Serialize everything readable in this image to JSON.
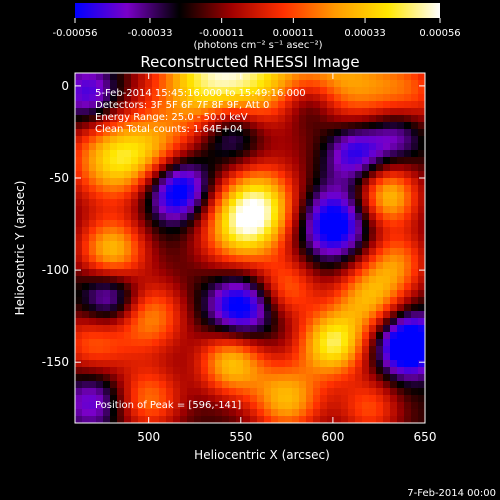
{
  "chart_data": {
    "type": "heatmap",
    "title": "Reconstructed RHESSI Image",
    "xlabel": "Heliocentric X (arcsec)",
    "ylabel": "Heliocentric Y (arcsec)",
    "xlim": [
      460,
      650
    ],
    "ylim": [
      -183,
      7
    ],
    "x_ticks": [
      500,
      550,
      600,
      650
    ],
    "y_ticks": [
      0,
      -50,
      -100,
      -150
    ],
    "grid": false,
    "colorbar": {
      "placement": "top",
      "range": [
        -0.00056,
        0.00056
      ],
      "tick_values": [
        -0.00056,
        -0.00033,
        -0.00011,
        0.00011,
        0.00033,
        0.00056
      ],
      "tick_labels": [
        "-0.00056",
        "-0.00033",
        "-0.00011",
        "0.00011",
        "0.00033",
        "0.00056"
      ],
      "unit_label": "(photons cm⁻² s⁻¹ asec⁻²)"
    },
    "colorscale": [
      "#0000ff",
      "#7a00c8",
      "#000000",
      "#a00000",
      "#ff3000",
      "#ff9a00",
      "#ffe600",
      "#ffffff"
    ],
    "annotations": {
      "time_range": "5-Feb-2014 15:45:16.000 to 15:49:16.000",
      "detectors": "Detectors: 3F 5F 6F 7F 8F 9F, Att 0",
      "energy": "Energy Range: 25.0 - 50.0 keV",
      "clean": "Clean    Total counts: 1.64E+04",
      "peak": "Position of Peak = [596,-141]"
    },
    "peak_position": [
      596,
      -141
    ],
    "blobs": [
      {
        "x": 530,
        "y": 3,
        "w": 0.85,
        "r": 22
      },
      {
        "x": 555,
        "y": 5,
        "w": 0.6,
        "r": 20
      },
      {
        "x": 600,
        "y": 2,
        "w": 0.8,
        "r": 22
      },
      {
        "x": 640,
        "y": -5,
        "w": 0.5,
        "r": 16
      },
      {
        "x": 480,
        "y": -40,
        "w": 0.85,
        "r": 17
      },
      {
        "x": 505,
        "y": -38,
        "w": 0.55,
        "r": 15
      },
      {
        "x": 560,
        "y": -65,
        "w": 0.95,
        "r": 16
      },
      {
        "x": 548,
        "y": -80,
        "w": 0.65,
        "r": 16
      },
      {
        "x": 480,
        "y": -90,
        "w": 0.85,
        "r": 13
      },
      {
        "x": 500,
        "y": -125,
        "w": 0.7,
        "r": 14
      },
      {
        "x": 470,
        "y": -140,
        "w": 0.55,
        "r": 14
      },
      {
        "x": 600,
        "y": -140,
        "w": 1.0,
        "r": 13
      },
      {
        "x": 620,
        "y": -115,
        "w": 0.75,
        "r": 14
      },
      {
        "x": 635,
        "y": -95,
        "w": 0.55,
        "r": 12
      },
      {
        "x": 630,
        "y": -60,
        "w": 0.85,
        "r": 12
      },
      {
        "x": 575,
        "y": -110,
        "w": 0.55,
        "r": 12
      },
      {
        "x": 545,
        "y": -150,
        "w": 0.85,
        "r": 13
      },
      {
        "x": 575,
        "y": -170,
        "w": 0.8,
        "r": 14
      },
      {
        "x": 500,
        "y": -170,
        "w": 0.6,
        "r": 13
      },
      {
        "x": 620,
        "y": -175,
        "w": 0.5,
        "r": 12
      },
      {
        "x": 515,
        "y": -55,
        "w": -0.95,
        "r": 13
      },
      {
        "x": 545,
        "y": -25,
        "w": -0.6,
        "r": 13
      },
      {
        "x": 612,
        "y": -35,
        "w": -0.65,
        "r": 12
      },
      {
        "x": 600,
        "y": -75,
        "w": -0.75,
        "r": 14
      },
      {
        "x": 640,
        "y": -140,
        "w": -0.95,
        "r": 12
      },
      {
        "x": 480,
        "y": -115,
        "w": -0.65,
        "r": 12
      },
      {
        "x": 550,
        "y": -120,
        "w": -0.75,
        "r": 13
      },
      {
        "x": 635,
        "y": -25,
        "w": -0.5,
        "r": 11
      },
      {
        "x": 588,
        "y": -10,
        "w": -0.55,
        "r": 12
      },
      {
        "x": 468,
        "y": -5,
        "w": -0.5,
        "r": 12
      },
      {
        "x": 470,
        "y": -170,
        "w": -0.45,
        "r": 12
      }
    ]
  },
  "footer": {
    "date": "7-Feb-2014 00:00"
  }
}
